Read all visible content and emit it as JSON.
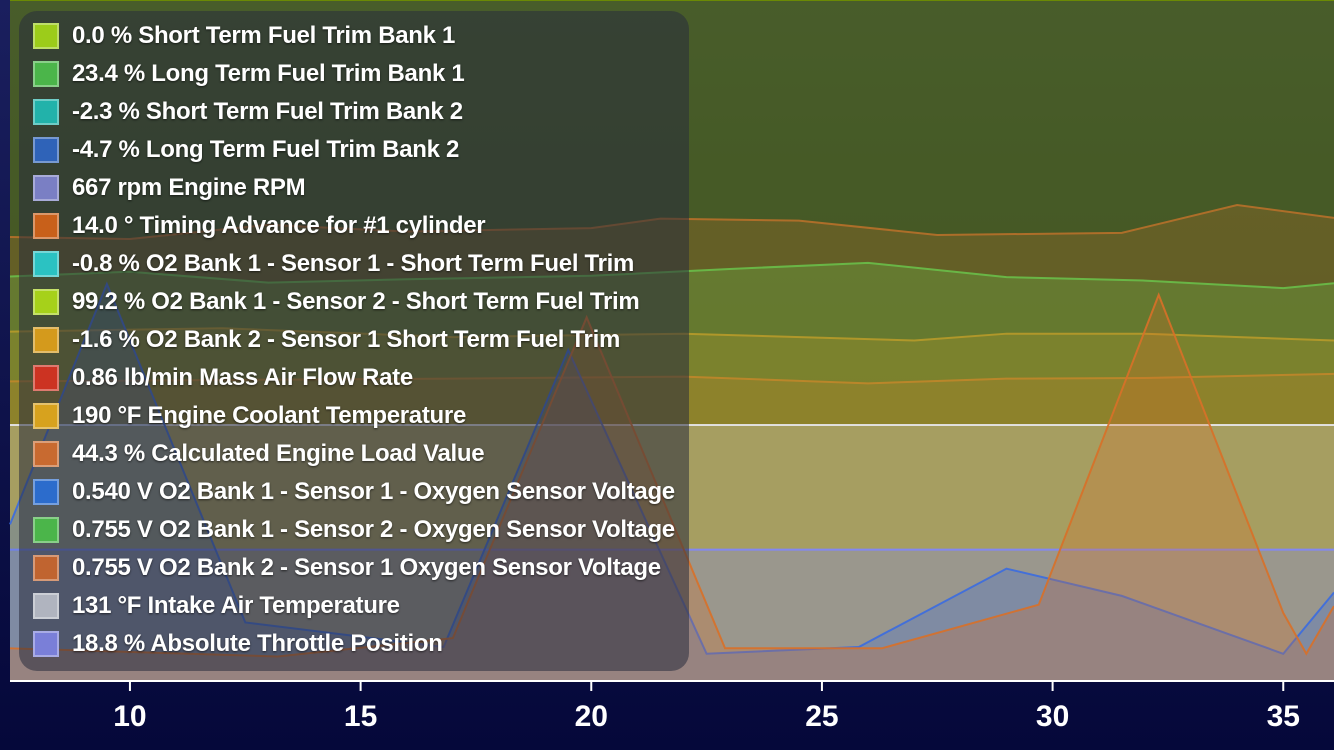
{
  "legend": [
    {
      "label": "0.0 % Short Term Fuel Trim Bank 1",
      "color": "#9ccc1a"
    },
    {
      "label": "23.4 % Long Term Fuel Trim Bank 1",
      "color": "#4bb54a"
    },
    {
      "label": "-2.3 % Short Term Fuel Trim Bank 2",
      "color": "#22b2aa"
    },
    {
      "label": "-4.7 % Long Term Fuel Trim Bank 2",
      "color": "#2f63b8"
    },
    {
      "label": "667 rpm Engine RPM",
      "color": "#7a7fc4"
    },
    {
      "label": "14.0 ° Timing Advance for #1 cylinder",
      "color": "#c8601a"
    },
    {
      "label": "-0.8 % O2 Bank 1 - Sensor 1 - Short Term Fuel Trim",
      "color": "#2bc2c2"
    },
    {
      "label": "99.2 % O2 Bank 1 - Sensor 2 - Short Term Fuel Trim",
      "color": "#a6d11a"
    },
    {
      "label": "-1.6 % O2 Bank 2 - Sensor 1 Short Term Fuel Trim",
      "color": "#d49a1c"
    },
    {
      "label": "0.86 lb/min Mass Air Flow Rate",
      "color": "#cc3322"
    },
    {
      "label": "190 °F Engine Coolant Temperature",
      "color": "#d7a21e"
    },
    {
      "label": "44.3 % Calculated Engine Load Value",
      "color": "#c86a30"
    },
    {
      "label": "0.540 V O2 Bank 1 - Sensor 1 - Oxygen Sensor Voltage",
      "color": "#2c6ccc"
    },
    {
      "label": "0.755 V O2 Bank 1 - Sensor 2 - Oxygen Sensor Voltage",
      "color": "#4bb54a"
    },
    {
      "label": "0.755 V O2 Bank 2 - Sensor 1 Oxygen Sensor Voltage",
      "color": "#c06430"
    },
    {
      "label": "131 °F Intake Air Temperature",
      "color": "#b0b4bf"
    },
    {
      "label": "18.8 % Absolute Throttle Position",
      "color": "#7a7fd8"
    }
  ],
  "chart_data": {
    "type": "area",
    "x_ticks": [
      10,
      15,
      20,
      25,
      30,
      35
    ],
    "xlim": [
      7.4,
      36.1
    ],
    "ylim": [
      0,
      1
    ],
    "grid": false,
    "legend_position": "top-left",
    "series": [
      {
        "name": "0.0 % Short Term Fuel Trim Bank 1",
        "color": "#6f8f00",
        "x": [
          7.4,
          36.1
        ],
        "values": [
          1.0,
          1.0
        ]
      },
      {
        "name": "23.4 % Long Term Fuel Trim Bank 1",
        "color": "#4ddd55",
        "x": [
          7.4,
          10,
          13,
          16,
          20,
          23,
          26,
          29,
          32,
          35,
          36.1
        ],
        "values": [
          0.594,
          0.601,
          0.585,
          0.59,
          0.595,
          0.605,
          0.614,
          0.593,
          0.588,
          0.577,
          0.584
        ]
      },
      {
        "name": "14.0 ° Timing Advance for #1 cylinder",
        "color": "#b7702a",
        "x": [
          7.4,
          10,
          13,
          16,
          20,
          21.5,
          24.5,
          27.5,
          31.5,
          34,
          36.1
        ],
        "values": [
          0.652,
          0.649,
          0.67,
          0.66,
          0.665,
          0.679,
          0.676,
          0.655,
          0.658,
          0.699,
          0.68
        ]
      },
      {
        "name": "-1.6 % O2 Bank 2 - Sensor 1 Short Term Fuel Trim",
        "color": "#b79a2a",
        "x": [
          7.4,
          12,
          17,
          22,
          27,
          29,
          32,
          36.1
        ],
        "values": [
          0.513,
          0.518,
          0.505,
          0.51,
          0.5,
          0.51,
          0.51,
          0.5
        ]
      },
      {
        "name": "190 °F Engine Coolant Temperature",
        "color": "#c0862a",
        "x": [
          7.4,
          12,
          17,
          22,
          26,
          29,
          32,
          36.1
        ],
        "values": [
          0.44,
          0.442,
          0.444,
          0.447,
          0.437,
          0.444,
          0.445,
          0.451
        ]
      },
      {
        "name": "131 °F Intake Air Temperature",
        "color": "#e8e8ee",
        "x": [
          7.4,
          36.1
        ],
        "values": [
          0.376,
          0.376
        ]
      },
      {
        "name": "18.8 % Absolute Throttle Position",
        "color": "#7f86ff",
        "x": [
          7.4,
          36.1
        ],
        "values": [
          0.193,
          0.193
        ]
      },
      {
        "name": "0.540 V O2 Bank 1 - Sensor 1 - Oxygen Sensor Voltage",
        "color": "#3b6ce0",
        "x": [
          7.4,
          9.5,
          12.5,
          16.8,
          19.5,
          22.5,
          25.8,
          29,
          31.5,
          35,
          36.1
        ],
        "values": [
          0.23,
          0.583,
          0.086,
          0.05,
          0.486,
          0.04,
          0.05,
          0.165,
          0.125,
          0.04,
          0.13
        ]
      },
      {
        "name": "0.755 V O2 Bank 2 - Sensor 1 Oxygen Sensor Voltage",
        "color": "#d87028",
        "x": [
          7.4,
          13.2,
          17,
          19.9,
          22.9,
          26.3,
          29.7,
          32.3,
          35,
          35.5,
          36.1
        ],
        "values": [
          0.048,
          0.036,
          0.063,
          0.534,
          0.048,
          0.048,
          0.112,
          0.567,
          0.1,
          0.04,
          0.11
        ]
      }
    ]
  }
}
